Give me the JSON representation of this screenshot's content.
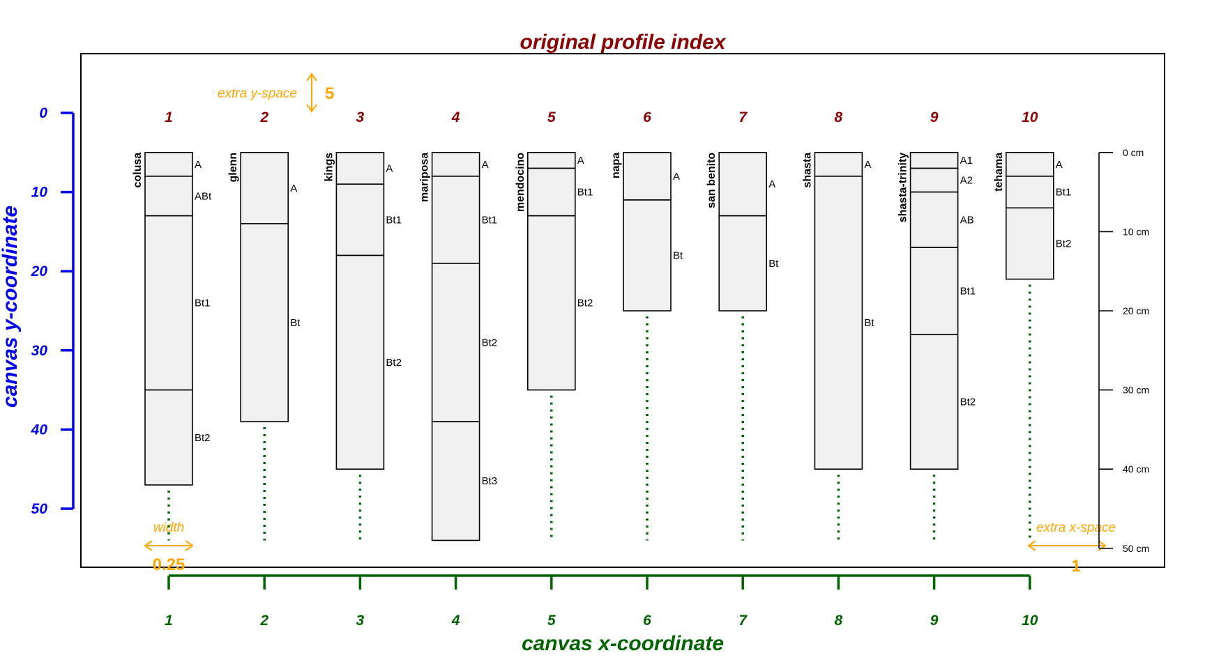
{
  "title": "original profile index",
  "colors": {
    "title": "#8b0000",
    "x_axis": "#006400",
    "y_axis": "#0000ee",
    "annotation": "#ffa500",
    "profile_fill": "#f0f0f0",
    "stroke": "#000000"
  },
  "x_axis": {
    "label": "canvas x-coordinate",
    "ticks": [
      "1",
      "2",
      "3",
      "4",
      "5",
      "6",
      "7",
      "8",
      "9",
      "10"
    ]
  },
  "y_axis": {
    "label": "canvas y-coordinate",
    "range": [
      0,
      50
    ],
    "ticks": [
      "0",
      "10",
      "20",
      "30",
      "40",
      "50"
    ]
  },
  "depth_axis": {
    "range_cm": [
      0,
      50
    ],
    "labels": [
      "0 cm",
      "10 cm",
      "20 cm",
      "30 cm",
      "40 cm",
      "50 cm"
    ]
  },
  "annotations": {
    "extra_y_space": {
      "label": "extra y-space",
      "value": "5"
    },
    "width": {
      "label": "width",
      "value": "0.25"
    },
    "extra_x_space": {
      "label": "extra x-space",
      "value": "1"
    }
  },
  "chart_data": {
    "type": "soil-profile-sketch",
    "depth_units": "cm",
    "profiles": [
      {
        "index": "1",
        "name": "colusa",
        "horizons": [
          {
            "name": "A",
            "top": 0,
            "bottom": 3
          },
          {
            "name": "ABt",
            "top": 3,
            "bottom": 8
          },
          {
            "name": "Bt1",
            "top": 8,
            "bottom": 30
          },
          {
            "name": "Bt2",
            "top": 30,
            "bottom": 42
          }
        ]
      },
      {
        "index": "2",
        "name": "glenn",
        "horizons": [
          {
            "name": "A",
            "top": 0,
            "bottom": 9
          },
          {
            "name": "Bt",
            "top": 9,
            "bottom": 34
          }
        ]
      },
      {
        "index": "3",
        "name": "kings",
        "horizons": [
          {
            "name": "A",
            "top": 0,
            "bottom": 4
          },
          {
            "name": "Bt1",
            "top": 4,
            "bottom": 13
          },
          {
            "name": "Bt2",
            "top": 13,
            "bottom": 40
          }
        ]
      },
      {
        "index": "4",
        "name": "mariposa",
        "horizons": [
          {
            "name": "A",
            "top": 0,
            "bottom": 3
          },
          {
            "name": "Bt1",
            "top": 3,
            "bottom": 14
          },
          {
            "name": "Bt2",
            "top": 14,
            "bottom": 34
          },
          {
            "name": "Bt3",
            "top": 34,
            "bottom": 49
          }
        ]
      },
      {
        "index": "5",
        "name": "mendocino",
        "horizons": [
          {
            "name": "A",
            "top": 0,
            "bottom": 2
          },
          {
            "name": "Bt1",
            "top": 2,
            "bottom": 8
          },
          {
            "name": "Bt2",
            "top": 8,
            "bottom": 30
          }
        ]
      },
      {
        "index": "6",
        "name": "napa",
        "horizons": [
          {
            "name": "A",
            "top": 0,
            "bottom": 6
          },
          {
            "name": "Bt",
            "top": 6,
            "bottom": 20
          }
        ]
      },
      {
        "index": "7",
        "name": "san benito",
        "horizons": [
          {
            "name": "A",
            "top": 0,
            "bottom": 8
          },
          {
            "name": "Bt",
            "top": 8,
            "bottom": 20
          }
        ]
      },
      {
        "index": "8",
        "name": "shasta",
        "horizons": [
          {
            "name": "A",
            "top": 0,
            "bottom": 3
          },
          {
            "name": "Bt",
            "top": 3,
            "bottom": 40
          }
        ]
      },
      {
        "index": "9",
        "name": "shasta-trinity",
        "horizons": [
          {
            "name": "A1",
            "top": 0,
            "bottom": 2
          },
          {
            "name": "A2",
            "top": 2,
            "bottom": 5
          },
          {
            "name": "AB",
            "top": 5,
            "bottom": 12
          },
          {
            "name": "Bt1",
            "top": 12,
            "bottom": 23
          },
          {
            "name": "Bt2",
            "top": 23,
            "bottom": 40
          }
        ]
      },
      {
        "index": "10",
        "name": "tehama",
        "horizons": [
          {
            "name": "A",
            "top": 0,
            "bottom": 3
          },
          {
            "name": "Bt1",
            "top": 3,
            "bottom": 7
          },
          {
            "name": "Bt2",
            "top": 7,
            "bottom": 16
          }
        ]
      }
    ]
  }
}
